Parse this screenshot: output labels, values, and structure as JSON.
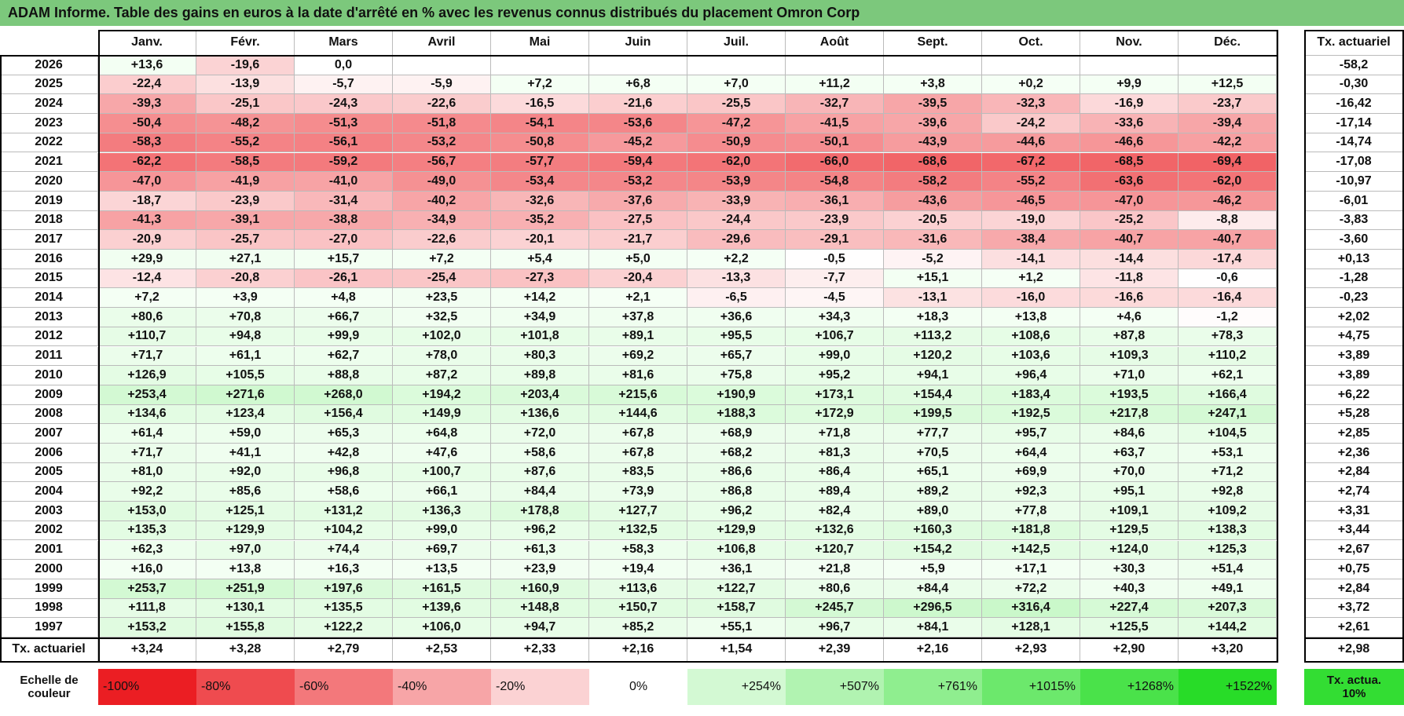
{
  "title": "ADAM Informe. Table des gains en euros à la date d'arrêté en % avec les revenus connus distribués du placement Omron Corp",
  "columns": [
    "Janv.",
    "Févr.",
    "Mars",
    "Avril",
    "Mai",
    "Juin",
    "Juil.",
    "Août",
    "Sept.",
    "Oct.",
    "Nov.",
    "Déc."
  ],
  "actuarial_header": "Tx. actuariel",
  "rows": [
    {
      "year": "2026",
      "values": [
        "+13,6",
        "-19,6",
        "0,0"
      ],
      "actuarial": "-58,2"
    },
    {
      "year": "2025",
      "values": [
        "-22,4",
        "-13,9",
        "-5,7",
        "-5,9",
        "+7,2",
        "+6,8",
        "+7,0",
        "+11,2",
        "+3,8",
        "+0,2",
        "+9,9",
        "+12,5"
      ],
      "actuarial": "-0,30"
    },
    {
      "year": "2024",
      "values": [
        "-39,3",
        "-25,1",
        "-24,3",
        "-22,6",
        "-16,5",
        "-21,6",
        "-25,5",
        "-32,7",
        "-39,5",
        "-32,3",
        "-16,9",
        "-23,7"
      ],
      "actuarial": "-16,42"
    },
    {
      "year": "2023",
      "values": [
        "-50,4",
        "-48,2",
        "-51,3",
        "-51,8",
        "-54,1",
        "-53,6",
        "-47,2",
        "-41,5",
        "-39,6",
        "-24,2",
        "-33,6",
        "-39,4"
      ],
      "actuarial": "-17,14"
    },
    {
      "year": "2022",
      "values": [
        "-58,3",
        "-55,2",
        "-56,1",
        "-53,2",
        "-50,8",
        "-45,2",
        "-50,9",
        "-50,1",
        "-43,9",
        "-44,6",
        "-46,6",
        "-42,2"
      ],
      "actuarial": "-14,74"
    },
    {
      "year": "2021",
      "values": [
        "-62,2",
        "-58,5",
        "-59,2",
        "-56,7",
        "-57,7",
        "-59,4",
        "-62,0",
        "-66,0",
        "-68,6",
        "-67,2",
        "-68,5",
        "-69,4"
      ],
      "actuarial": "-17,08"
    },
    {
      "year": "2020",
      "values": [
        "-47,0",
        "-41,9",
        "-41,0",
        "-49,0",
        "-53,4",
        "-53,2",
        "-53,9",
        "-54,8",
        "-58,2",
        "-55,2",
        "-63,6",
        "-62,0"
      ],
      "actuarial": "-10,97"
    },
    {
      "year": "2019",
      "values": [
        "-18,7",
        "-23,9",
        "-31,4",
        "-40,2",
        "-32,6",
        "-37,6",
        "-33,9",
        "-36,1",
        "-43,6",
        "-46,5",
        "-47,0",
        "-46,2"
      ],
      "actuarial": "-6,01"
    },
    {
      "year": "2018",
      "values": [
        "-41,3",
        "-39,1",
        "-38,8",
        "-34,9",
        "-35,2",
        "-27,5",
        "-24,4",
        "-23,9",
        "-20,5",
        "-19,0",
        "-25,2",
        "-8,8"
      ],
      "actuarial": "-3,83"
    },
    {
      "year": "2017",
      "values": [
        "-20,9",
        "-25,7",
        "-27,0",
        "-22,6",
        "-20,1",
        "-21,7",
        "-29,6",
        "-29,1",
        "-31,6",
        "-38,4",
        "-40,7",
        "-40,7"
      ],
      "actuarial": "-3,60"
    },
    {
      "year": "2016",
      "values": [
        "+29,9",
        "+27,1",
        "+15,7",
        "+7,2",
        "+5,4",
        "+5,0",
        "+2,2",
        "-0,5",
        "-5,2",
        "-14,1",
        "-14,4",
        "-17,4"
      ],
      "actuarial": "+0,13"
    },
    {
      "year": "2015",
      "values": [
        "-12,4",
        "-20,8",
        "-26,1",
        "-25,4",
        "-27,3",
        "-20,4",
        "-13,3",
        "-7,7",
        "+15,1",
        "+1,2",
        "-11,8",
        "-0,6"
      ],
      "actuarial": "-1,28"
    },
    {
      "year": "2014",
      "values": [
        "+7,2",
        "+3,9",
        "+4,8",
        "+23,5",
        "+14,2",
        "+2,1",
        "-6,5",
        "-4,5",
        "-13,1",
        "-16,0",
        "-16,6",
        "-16,4"
      ],
      "actuarial": "-0,23"
    },
    {
      "year": "2013",
      "values": [
        "+80,6",
        "+70,8",
        "+66,7",
        "+32,5",
        "+34,9",
        "+37,8",
        "+36,6",
        "+34,3",
        "+18,3",
        "+13,8",
        "+4,6",
        "-1,2"
      ],
      "actuarial": "+2,02"
    },
    {
      "year": "2012",
      "values": [
        "+110,7",
        "+94,8",
        "+99,9",
        "+102,0",
        "+101,8",
        "+89,1",
        "+95,5",
        "+106,7",
        "+113,2",
        "+108,6",
        "+87,8",
        "+78,3"
      ],
      "actuarial": "+4,75"
    },
    {
      "year": "2011",
      "values": [
        "+71,7",
        "+61,1",
        "+62,7",
        "+78,0",
        "+80,3",
        "+69,2",
        "+65,7",
        "+99,0",
        "+120,2",
        "+103,6",
        "+109,3",
        "+110,2"
      ],
      "actuarial": "+3,89"
    },
    {
      "year": "2010",
      "values": [
        "+126,9",
        "+105,5",
        "+88,8",
        "+87,2",
        "+89,8",
        "+81,6",
        "+75,8",
        "+95,2",
        "+94,1",
        "+96,4",
        "+71,0",
        "+62,1"
      ],
      "actuarial": "+3,89"
    },
    {
      "year": "2009",
      "values": [
        "+253,4",
        "+271,6",
        "+268,0",
        "+194,2",
        "+203,4",
        "+215,6",
        "+190,9",
        "+173,1",
        "+154,4",
        "+183,4",
        "+193,5",
        "+166,4"
      ],
      "actuarial": "+6,22"
    },
    {
      "year": "2008",
      "values": [
        "+134,6",
        "+123,4",
        "+156,4",
        "+149,9",
        "+136,6",
        "+144,6",
        "+188,3",
        "+172,9",
        "+199,5",
        "+192,5",
        "+217,8",
        "+247,1"
      ],
      "actuarial": "+5,28"
    },
    {
      "year": "2007",
      "values": [
        "+61,4",
        "+59,0",
        "+65,3",
        "+64,8",
        "+72,0",
        "+67,8",
        "+68,9",
        "+71,8",
        "+77,7",
        "+95,7",
        "+84,6",
        "+104,5"
      ],
      "actuarial": "+2,85"
    },
    {
      "year": "2006",
      "values": [
        "+71,7",
        "+41,1",
        "+42,8",
        "+47,6",
        "+58,6",
        "+67,8",
        "+68,2",
        "+81,3",
        "+70,5",
        "+64,4",
        "+63,7",
        "+53,1"
      ],
      "actuarial": "+2,36"
    },
    {
      "year": "2005",
      "values": [
        "+81,0",
        "+92,0",
        "+96,8",
        "+100,7",
        "+87,6",
        "+83,5",
        "+86,6",
        "+86,4",
        "+65,1",
        "+69,9",
        "+70,0",
        "+71,2"
      ],
      "actuarial": "+2,84"
    },
    {
      "year": "2004",
      "values": [
        "+92,2",
        "+85,6",
        "+58,6",
        "+66,1",
        "+84,4",
        "+73,9",
        "+86,8",
        "+89,4",
        "+89,2",
        "+92,3",
        "+95,1",
        "+92,8"
      ],
      "actuarial": "+2,74"
    },
    {
      "year": "2003",
      "values": [
        "+153,0",
        "+125,1",
        "+131,2",
        "+136,3",
        "+178,8",
        "+127,7",
        "+96,2",
        "+82,4",
        "+89,0",
        "+77,8",
        "+109,1",
        "+109,2"
      ],
      "actuarial": "+3,31"
    },
    {
      "year": "2002",
      "values": [
        "+135,3",
        "+129,9",
        "+104,2",
        "+99,0",
        "+96,2",
        "+132,5",
        "+129,9",
        "+132,6",
        "+160,3",
        "+181,8",
        "+129,5",
        "+138,3"
      ],
      "actuarial": "+3,44"
    },
    {
      "year": "2001",
      "values": [
        "+62,3",
        "+97,0",
        "+74,4",
        "+69,7",
        "+61,3",
        "+58,3",
        "+106,8",
        "+120,7",
        "+154,2",
        "+142,5",
        "+124,0",
        "+125,3"
      ],
      "actuarial": "+2,67"
    },
    {
      "year": "2000",
      "values": [
        "+16,0",
        "+13,8",
        "+16,3",
        "+13,5",
        "+23,9",
        "+19,4",
        "+36,1",
        "+21,8",
        "+5,9",
        "+17,1",
        "+30,3",
        "+51,4"
      ],
      "actuarial": "+0,75"
    },
    {
      "year": "1999",
      "values": [
        "+253,7",
        "+251,9",
        "+197,6",
        "+161,5",
        "+160,9",
        "+113,6",
        "+122,7",
        "+80,6",
        "+84,4",
        "+72,2",
        "+40,3",
        "+49,1"
      ],
      "actuarial": "+2,84"
    },
    {
      "year": "1998",
      "values": [
        "+111,8",
        "+130,1",
        "+135,5",
        "+139,6",
        "+148,8",
        "+150,7",
        "+158,7",
        "+245,7",
        "+296,5",
        "+316,4",
        "+227,4",
        "+207,3"
      ],
      "actuarial": "+3,72"
    },
    {
      "year": "1997",
      "values": [
        "+153,2",
        "+155,8",
        "+122,2",
        "+106,0",
        "+94,7",
        "+85,2",
        "+55,1",
        "+96,7",
        "+84,1",
        "+128,1",
        "+125,5",
        "+144,2"
      ],
      "actuarial": "+2,61"
    }
  ],
  "footer": {
    "label": "Tx. actuariel",
    "values": [
      "+3,24",
      "+3,28",
      "+2,79",
      "+2,53",
      "+2,33",
      "+2,16",
      "+1,54",
      "+2,39",
      "+2,16",
      "+2,93",
      "+2,90",
      "+3,20"
    ],
    "actuarial": "+2,98"
  },
  "scale": {
    "label": "Echelle de couleur",
    "steps": [
      "-100%",
      "-80%",
      "-60%",
      "-40%",
      "-20%",
      "0%",
      "+254%",
      "+507%",
      "+761%",
      "+1015%",
      "+1268%",
      "+1522%"
    ],
    "target": "Tx. actua. 10%"
  }
}
